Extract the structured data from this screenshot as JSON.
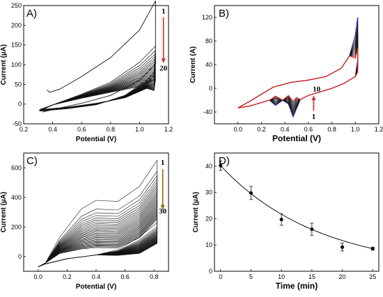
{
  "chart_data": [
    {
      "panel": "A)",
      "type": "line",
      "xlabel": "Potential (V)",
      "ylabel": "Current (µA)",
      "xlim": [
        0.2,
        1.2
      ],
      "ylim": [
        -50,
        250
      ],
      "xticks": [
        "0.2",
        "0.4",
        "0.6",
        "0.8",
        "1.0",
        "1.2"
      ],
      "yticks": [
        "-50",
        "0",
        "50",
        "100",
        "150",
        "200",
        "250"
      ],
      "cycles": 20,
      "first_cycle": {
        "x_anodic": [
          0.33,
          0.4,
          0.6,
          0.8,
          1.0,
          1.11
        ],
        "y_anodic": [
          -20,
          -14,
          2,
          22,
          60,
          102
        ],
        "x_cathodic": [
          1.11,
          1.0,
          0.8,
          0.6,
          0.45,
          0.38,
          0.36
        ],
        "y_cathodic": [
          262,
          188,
          118,
          70,
          38,
          30,
          36
        ]
      },
      "cycle_annotation": {
        "start": "1",
        "end": "20",
        "arrow": "down",
        "color": "#d9261c"
      },
      "grid": false
    },
    {
      "panel": "B)",
      "type": "line",
      "xlabel": "Potential (V)",
      "ylabel": "Current (A)",
      "xlim": [
        -0.2,
        1.2
      ],
      "ylim": [
        -60,
        140
      ],
      "xticks": [
        "0.0",
        "0.2",
        "0.4",
        "0.6",
        "0.8",
        "1.0",
        "1.2"
      ],
      "yticks": [
        "-40",
        "0",
        "40",
        "80",
        "120"
      ],
      "cycles": 10,
      "first_cycle_color": "#1f2aa8",
      "last_cycle_color": "#e0201b",
      "cathodic_peak": {
        "x": 0.47,
        "y": -48
      },
      "anodic_peak_max": {
        "x": 1.02,
        "y": 120
      },
      "cycle_annotation": {
        "start": "1",
        "end": "10",
        "arrow": "up",
        "color": "#d9261c"
      },
      "grid": false
    },
    {
      "panel": "C)",
      "type": "line",
      "xlabel": "Potential (V)",
      "ylabel": "Current (µA)",
      "xlim": [
        -0.1,
        0.9
      ],
      "ylim": [
        -100,
        700
      ],
      "xticks": [
        "0.0",
        "0.2",
        "0.4",
        "0.6",
        "0.8"
      ],
      "yticks": [
        "0",
        "200",
        "400",
        "600"
      ],
      "cycles": 30,
      "first_cycle_max": {
        "x": 0.82,
        "y": 650
      },
      "cycle_annotation": {
        "start": "1",
        "end": "30",
        "arrow": "down",
        "color": "#8a6a00"
      },
      "grid": false
    },
    {
      "panel": "D)",
      "type": "scatter",
      "xlabel": "Time (min)",
      "ylabel": "Current (µA)",
      "xlim": [
        -1,
        26
      ],
      "ylim": [
        0,
        45
      ],
      "xticks": [
        "0",
        "5",
        "10",
        "15",
        "20",
        "25"
      ],
      "yticks": [
        "0",
        "10",
        "20",
        "30",
        "40"
      ],
      "x": [
        0,
        5,
        10,
        15,
        20,
        25
      ],
      "y": [
        40.2,
        29.8,
        19.7,
        16.0,
        9.2,
        8.6
      ],
      "error": [
        1.8,
        2.5,
        2.2,
        2.3,
        1.5,
        0.6
      ],
      "fit": "exponential decay",
      "grid": false
    }
  ]
}
